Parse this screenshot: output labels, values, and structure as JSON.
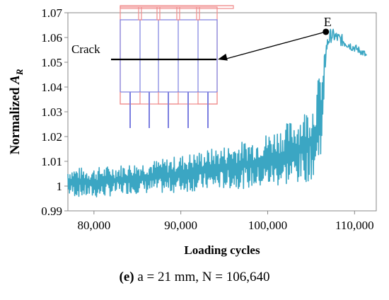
{
  "chart_data": {
    "type": "line",
    "xlabel": "Loading cycles",
    "ylabel_base": "Normalized ",
    "ylabel_var": "A",
    "ylabel_sub": "R",
    "xlim": [
      77000,
      112500
    ],
    "ylim": [
      0.99,
      1.07
    ],
    "xticks": [
      80000,
      90000,
      100000,
      110000
    ],
    "xtick_labels": [
      "80,000",
      "90,000",
      "100,000",
      "110,000"
    ],
    "yticks": [
      0.99,
      1.0,
      1.01,
      1.02,
      1.03,
      1.04,
      1.05,
      1.06,
      1.07
    ],
    "ytick_labels": [
      "0.99",
      "1",
      "1.01",
      "1.02",
      "1.03",
      "1.04",
      "1.05",
      "1.06",
      "1.07"
    ],
    "grid": false,
    "series": [
      {
        "color": "#3ba6c3",
        "x": [
          77000,
          80000,
          84000,
          88000,
          92000,
          96000,
          99000,
          102000,
          104000,
          105300,
          105900,
          106400,
          106700,
          107000,
          107300,
          107700,
          108200,
          108700,
          109200,
          109700,
          110200,
          110700,
          111100,
          111400
        ],
        "upper": [
          1.0075,
          1.0075,
          1.009,
          1.011,
          1.014,
          1.017,
          1.02,
          1.025,
          1.03,
          1.035,
          1.045,
          1.05,
          1.058,
          1.062,
          1.064,
          1.063,
          1.062,
          1.061,
          1.0595,
          1.058,
          1.057,
          1.056,
          1.055,
          1.054
        ],
        "lower": [
          0.996,
          0.995,
          0.997,
          0.997,
          0.998,
          0.999,
          0.999,
          1.0,
          1.001,
          1.003,
          1.008,
          1.02,
          1.052,
          1.056,
          1.058,
          1.058,
          1.057,
          1.056,
          1.0555,
          1.0545,
          1.054,
          1.053,
          1.052,
          1.0505
        ]
      }
    ],
    "annotations": {
      "point_label": "E",
      "point": [
        106700,
        1.0623
      ],
      "crack_label": "Crack"
    }
  },
  "caption": {
    "bold": "(e)",
    "text": " a = 21 mm, N = 106,640"
  }
}
